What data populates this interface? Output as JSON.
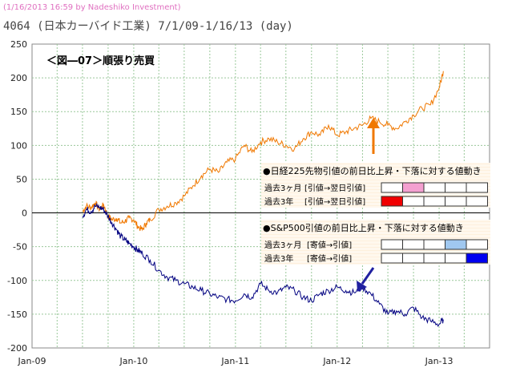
{
  "header": {
    "credit": "(1/16/2013 16:59 by Nadeshiko Investment)",
    "title": "4064 (日本カーバイド工業) 7/1/09-1/16/13 (day)"
  },
  "chart_data": {
    "type": "line",
    "title": "＜図―07＞順張り売買",
    "xlabel": "",
    "ylabel": "",
    "ylim": [
      -200,
      250
    ],
    "yticks": [
      -200,
      -150,
      -100,
      -50,
      0,
      50,
      100,
      150,
      200,
      250
    ],
    "x_range": [
      "2009-01",
      "2013-07"
    ],
    "xticks": [
      {
        "label": "Jan-09",
        "x": "2009-01"
      },
      {
        "label": "Jan-10",
        "x": "2010-01"
      },
      {
        "label": "Jan-11",
        "x": "2011-01"
      },
      {
        "label": "Jan-12",
        "x": "2012-01"
      },
      {
        "label": "Jan-13",
        "x": "2013-01"
      }
    ],
    "grid": true,
    "series": [
      {
        "color": "#f07800",
        "x": [
          "2009-07-01",
          "2009-07-15",
          "2009-08-01",
          "2009-08-15",
          "2009-09-01",
          "2009-09-15",
          "2009-10-01",
          "2009-10-15",
          "2009-11-01",
          "2009-11-15",
          "2009-12-01",
          "2009-12-15",
          "2010-01-01",
          "2010-01-15",
          "2010-02-01",
          "2010-02-15",
          "2010-03-01",
          "2010-04-01",
          "2010-05-01",
          "2010-06-01",
          "2010-07-01",
          "2010-08-01",
          "2010-09-01",
          "2010-10-01",
          "2010-11-01",
          "2010-12-01",
          "2011-01-01",
          "2011-02-01",
          "2011-03-01",
          "2011-04-01",
          "2011-05-01",
          "2011-06-01",
          "2011-07-01",
          "2011-08-01",
          "2011-09-01",
          "2011-10-01",
          "2011-11-01",
          "2011-12-01",
          "2012-01-01",
          "2012-02-01",
          "2012-03-01",
          "2012-04-01",
          "2012-05-01",
          "2012-06-01",
          "2012-07-01",
          "2012-08-01",
          "2012-09-01",
          "2012-10-01",
          "2012-11-01",
          "2012-12-01",
          "2013-01-01",
          "2013-01-16"
        ],
        "y": [
          2,
          10,
          8,
          15,
          5,
          12,
          -5,
          -10,
          -8,
          -15,
          -12,
          -8,
          -10,
          -20,
          -25,
          -15,
          -10,
          5,
          10,
          15,
          25,
          40,
          55,
          65,
          60,
          75,
          80,
          100,
          90,
          105,
          110,
          105,
          100,
          95,
          110,
          120,
          115,
          130,
          115,
          120,
          125,
          130,
          140,
          135,
          130,
          125,
          135,
          145,
          155,
          160,
          185,
          210
        ]
      },
      {
        "color": "#000080",
        "x": [
          "2009-07-01",
          "2009-07-15",
          "2009-08-01",
          "2009-08-15",
          "2009-09-01",
          "2009-09-15",
          "2009-10-01",
          "2009-10-15",
          "2009-11-01",
          "2009-11-15",
          "2009-12-01",
          "2009-12-15",
          "2010-01-01",
          "2010-01-15",
          "2010-02-01",
          "2010-03-01",
          "2010-04-01",
          "2010-05-01",
          "2010-06-01",
          "2010-07-01",
          "2010-08-01",
          "2010-09-01",
          "2010-10-01",
          "2010-11-01",
          "2010-12-01",
          "2011-01-01",
          "2011-02-01",
          "2011-03-01",
          "2011-04-01",
          "2011-05-01",
          "2011-06-01",
          "2011-07-01",
          "2011-08-01",
          "2011-09-01",
          "2011-10-01",
          "2011-11-01",
          "2011-12-01",
          "2012-01-01",
          "2012-02-01",
          "2012-03-01",
          "2012-04-01",
          "2012-05-01",
          "2012-06-01",
          "2012-07-01",
          "2012-08-01",
          "2012-09-01",
          "2012-10-01",
          "2012-11-01",
          "2012-12-01",
          "2013-01-01",
          "2013-01-16"
        ],
        "y": [
          -5,
          5,
          2,
          10,
          8,
          5,
          -5,
          -15,
          -25,
          -35,
          -40,
          -45,
          -50,
          -55,
          -60,
          -70,
          -85,
          -95,
          -100,
          -105,
          -110,
          -115,
          -120,
          -125,
          -128,
          -130,
          -120,
          -125,
          -105,
          -115,
          -118,
          -110,
          -115,
          -125,
          -130,
          -120,
          -115,
          -110,
          -115,
          -118,
          -110,
          -120,
          -135,
          -150,
          -145,
          -150,
          -140,
          -155,
          -160,
          -165,
          -158
        ]
      }
    ],
    "annotations": [
      {
        "type": "arrow",
        "color": "#f07800",
        "direction": "up"
      },
      {
        "type": "arrow",
        "color": "#2020a0",
        "direction": "down-left"
      }
    ],
    "inset_tables": [
      {
        "title": "●日経225先物引値の前日比上昇・下落に対する値動き",
        "rows": [
          {
            "label": "過去3ヶ月",
            "sub": "[引値→翌日引値]",
            "highlight_index": 1,
            "highlight_color": "#f4a0d0"
          },
          {
            "label": "過去3年",
            "sub": "[引値→翌日引値]",
            "highlight_index": 0,
            "highlight_color": "#f00000"
          }
        ]
      },
      {
        "title": "●S&P500引値の前日比上昇・下落に対する値動き",
        "rows": [
          {
            "label": "過去3ヶ月",
            "sub": "[寄値→引値]",
            "highlight_index": 3,
            "highlight_color": "#a0c8f0"
          },
          {
            "label": "過去3年",
            "sub": "[寄値→引値]",
            "highlight_index": 4,
            "highlight_color": "#0000f0"
          }
        ]
      }
    ]
  }
}
